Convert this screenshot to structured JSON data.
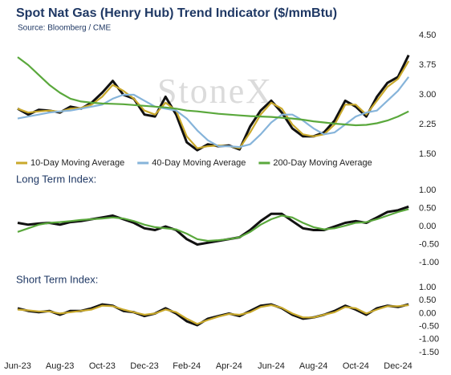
{
  "chart_data": [
    {
      "type": "line",
      "title": "Spot Nat Gas (Henry Hub) Trend Indicator ($/mmBtu)",
      "subtitle": "Source: Bloomberg / CME",
      "watermark": "StoneX",
      "ylim": [
        1.5,
        4.5
      ],
      "yticks": [
        {
          "value": 4.5,
          "label": "4.50"
        },
        {
          "value": 3.75,
          "label": "3.75"
        },
        {
          "value": 3,
          "label": "3.00"
        },
        {
          "value": 2.25,
          "label": "2.25"
        },
        {
          "value": 1.5,
          "label": "1.50"
        }
      ],
      "legend": "bottom",
      "series": [
        {
          "color": "#111111",
          "values": [
            2.65,
            2.5,
            2.62,
            2.6,
            2.55,
            2.7,
            2.65,
            2.8,
            3.05,
            3.35,
            3.0,
            2.9,
            2.5,
            2.45,
            2.95,
            2.5,
            1.8,
            1.6,
            1.75,
            1.7,
            1.72,
            1.62,
            2.2,
            2.6,
            2.85,
            2.55,
            2.15,
            1.95,
            1.95,
            2.05,
            2.35,
            2.85,
            2.7,
            2.45,
            2.95,
            3.3,
            3.45,
            4.0
          ]
        },
        {
          "name": "10-Day Moving Average",
          "color": "#c9a92c",
          "values": [
            2.65,
            2.55,
            2.58,
            2.6,
            2.57,
            2.65,
            2.67,
            2.75,
            2.95,
            3.25,
            3.1,
            2.9,
            2.6,
            2.5,
            2.8,
            2.6,
            1.95,
            1.65,
            1.7,
            1.72,
            1.7,
            1.65,
            2.05,
            2.5,
            2.8,
            2.65,
            2.25,
            2.0,
            1.95,
            2.0,
            2.25,
            2.75,
            2.75,
            2.5,
            2.85,
            3.2,
            3.4,
            3.85
          ]
        },
        {
          "name": "40-Day Moving Average",
          "color": "#86b4da",
          "values": [
            2.4,
            2.45,
            2.5,
            2.55,
            2.58,
            2.6,
            2.65,
            2.7,
            2.75,
            2.9,
            3.0,
            3.0,
            2.85,
            2.7,
            2.65,
            2.6,
            2.4,
            2.1,
            1.85,
            1.7,
            1.7,
            1.68,
            1.75,
            2.0,
            2.3,
            2.5,
            2.5,
            2.35,
            2.15,
            2.0,
            2.05,
            2.25,
            2.45,
            2.55,
            2.6,
            2.85,
            3.1,
            3.45
          ]
        },
        {
          "name": "200-Day Moving Average",
          "color": "#5aa83c",
          "values": [
            3.95,
            3.75,
            3.5,
            3.25,
            3.05,
            2.9,
            2.83,
            2.8,
            2.78,
            2.77,
            2.76,
            2.74,
            2.72,
            2.7,
            2.68,
            2.65,
            2.6,
            2.58,
            2.55,
            2.52,
            2.5,
            2.48,
            2.46,
            2.45,
            2.44,
            2.42,
            2.4,
            2.37,
            2.33,
            2.3,
            2.27,
            2.25,
            2.23,
            2.24,
            2.28,
            2.35,
            2.45,
            2.58
          ]
        }
      ]
    },
    {
      "type": "line",
      "title": "Long Term Index:",
      "ylim": [
        -1,
        1
      ],
      "yticks": [
        {
          "value": 1,
          "label": "1.00"
        },
        {
          "value": 0.5,
          "label": "0.50"
        },
        {
          "value": 0,
          "label": "0.00"
        },
        {
          "value": -0.5,
          "label": "-0.50"
        },
        {
          "value": -1,
          "label": "-1.00"
        }
      ],
      "series": [
        {
          "color": "#111111",
          "values": [
            0.1,
            0.05,
            0.08,
            0.1,
            0.05,
            0.12,
            0.15,
            0.2,
            0.25,
            0.3,
            0.2,
            0.1,
            -0.05,
            -0.1,
            0.0,
            -0.1,
            -0.35,
            -0.5,
            -0.45,
            -0.4,
            -0.35,
            -0.3,
            -0.1,
            0.15,
            0.35,
            0.35,
            0.15,
            -0.05,
            -0.1,
            -0.1,
            0.0,
            0.1,
            0.15,
            0.1,
            0.25,
            0.4,
            0.45,
            0.55
          ]
        },
        {
          "color": "#5aa83c",
          "values": [
            -0.15,
            -0.05,
            0.05,
            0.1,
            0.12,
            0.15,
            0.18,
            0.2,
            0.22,
            0.25,
            0.22,
            0.15,
            0.05,
            -0.02,
            -0.05,
            -0.08,
            -0.2,
            -0.35,
            -0.4,
            -0.38,
            -0.35,
            -0.3,
            -0.15,
            0.05,
            0.2,
            0.3,
            0.25,
            0.1,
            -0.02,
            -0.08,
            -0.05,
            0.02,
            0.1,
            0.12,
            0.2,
            0.3,
            0.4,
            0.48
          ]
        }
      ]
    },
    {
      "type": "line",
      "title": "Short Term Index:",
      "ylim": [
        -1.5,
        1
      ],
      "yticks": [
        {
          "value": 1,
          "label": "1.00"
        },
        {
          "value": 0.5,
          "label": "0.50"
        },
        {
          "value": 0,
          "label": "0.00"
        },
        {
          "value": -0.5,
          "label": "-0.50"
        },
        {
          "value": -1,
          "label": "-1.00"
        },
        {
          "value": -1.5,
          "label": "-1.50"
        }
      ],
      "categories": [
        "Jun-23",
        null,
        null,
        null,
        "Aug-23",
        null,
        null,
        null,
        "Oct-23",
        null,
        null,
        null,
        "Dec-23",
        null,
        null,
        null,
        "Feb-24",
        null,
        null,
        null,
        "Apr-24",
        null,
        null,
        null,
        "Jun-24",
        null,
        null,
        null,
        "Aug-24",
        null,
        null,
        null,
        "Oct-24",
        null,
        null,
        null,
        "Dec-24",
        null
      ],
      "series": [
        {
          "color": "#111111",
          "values": [
            0.2,
            0.1,
            0.05,
            0.1,
            -0.05,
            0.1,
            0.1,
            0.2,
            0.35,
            0.3,
            0.1,
            0.05,
            -0.1,
            0.0,
            0.2,
            0.0,
            -0.3,
            -0.45,
            -0.2,
            -0.1,
            0.0,
            -0.1,
            0.1,
            0.3,
            0.35,
            0.2,
            -0.05,
            -0.2,
            -0.15,
            -0.05,
            0.1,
            0.3,
            0.15,
            -0.05,
            0.2,
            0.3,
            0.25,
            0.35
          ]
        },
        {
          "color": "#c9a92c",
          "values": [
            0.15,
            0.12,
            0.08,
            0.08,
            0.0,
            0.05,
            0.1,
            0.15,
            0.3,
            0.28,
            0.15,
            0.05,
            -0.05,
            0.0,
            0.15,
            0.05,
            -0.2,
            -0.4,
            -0.25,
            -0.12,
            -0.02,
            -0.05,
            0.05,
            0.25,
            0.32,
            0.22,
            0.0,
            -0.15,
            -0.15,
            -0.05,
            0.05,
            0.25,
            0.2,
            0.0,
            0.15,
            0.28,
            0.28,
            0.32
          ]
        }
      ]
    }
  ]
}
